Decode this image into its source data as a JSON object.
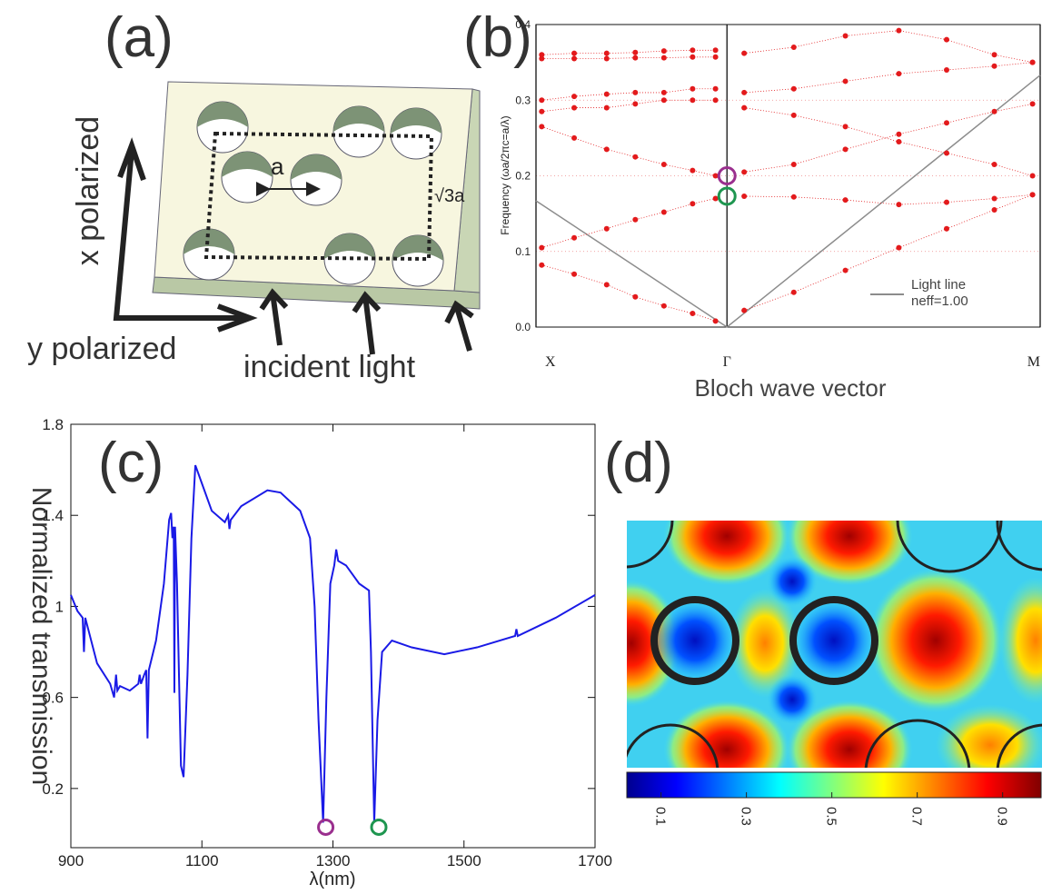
{
  "panel_a": {
    "label": "(a)",
    "x_label": "x polarized",
    "y_label": "y polarized",
    "incident": "incident light",
    "lattice": "a",
    "height": "√3a"
  },
  "chart_data": [
    {
      "type": "scatter",
      "panel_label": "(b)",
      "ylabel": "Frequency (ωa/2πc=a/λ)",
      "xlabel": "Bloch wave vector",
      "xlim": [
        0,
        2.64
      ],
      "xticks": [
        {
          "value": 0,
          "label": "X"
        },
        {
          "value": 1,
          "label": "Γ"
        },
        {
          "value": 2.64,
          "label": "M"
        }
      ],
      "ylim": [
        0,
        0.4
      ],
      "yticks": [
        {
          "value": 0,
          "label": "0.0"
        },
        {
          "value": 0.1,
          "label": "0.1"
        },
        {
          "value": 0.2,
          "label": "0.2"
        },
        {
          "value": 0.3,
          "label": "0.3"
        },
        {
          "value": 0.4,
          "label": "0.4"
        }
      ],
      "grid": true,
      "legend": "lower right",
      "series": [
        {
          "color": "#e31a1c",
          "x": [
            0.03,
            0.2,
            0.37,
            0.52,
            0.67,
            0.82,
            0.94
          ],
          "values": [
            0.082,
            0.07,
            0.056,
            0.04,
            0.028,
            0.018,
            0.008
          ]
        },
        {
          "color": "#e31a1c",
          "x": [
            0.03,
            0.2,
            0.37,
            0.52,
            0.67,
            0.82,
            0.94
          ],
          "values": [
            0.105,
            0.118,
            0.13,
            0.142,
            0.152,
            0.163,
            0.17
          ]
        },
        {
          "color": "#e31a1c",
          "x": [
            0.03,
            0.2,
            0.37,
            0.52,
            0.67,
            0.82,
            0.94
          ],
          "values": [
            0.265,
            0.25,
            0.235,
            0.225,
            0.215,
            0.207,
            0.2
          ]
        },
        {
          "color": "#e31a1c",
          "x": [
            0.03,
            0.2,
            0.37,
            0.52,
            0.67,
            0.82,
            0.94
          ],
          "values": [
            0.285,
            0.29,
            0.29,
            0.295,
            0.3,
            0.3,
            0.3
          ]
        },
        {
          "color": "#e31a1c",
          "x": [
            0.03,
            0.2,
            0.37,
            0.52,
            0.67,
            0.82,
            0.94
          ],
          "values": [
            0.3,
            0.305,
            0.308,
            0.31,
            0.31,
            0.315,
            0.315
          ]
        },
        {
          "color": "#e31a1c",
          "x": [
            0.03,
            0.2,
            0.37,
            0.52,
            0.67,
            0.82,
            0.94
          ],
          "values": [
            0.355,
            0.355,
            0.355,
            0.356,
            0.356,
            0.357,
            0.357
          ]
        },
        {
          "color": "#e31a1c",
          "x": [
            0.03,
            0.2,
            0.37,
            0.52,
            0.67,
            0.82,
            0.94
          ],
          "values": [
            0.36,
            0.362,
            0.362,
            0.363,
            0.365,
            0.366,
            0.366
          ]
        },
        {
          "color": "#e31a1c",
          "x": [
            1.09,
            1.35,
            1.62,
            1.9,
            2.15,
            2.4,
            2.6
          ],
          "values": [
            0.022,
            0.046,
            0.075,
            0.105,
            0.13,
            0.155,
            0.175
          ]
        },
        {
          "color": "#e31a1c",
          "x": [
            1.09,
            1.35,
            1.62,
            1.9,
            2.15,
            2.4,
            2.6
          ],
          "values": [
            0.173,
            0.172,
            0.168,
            0.162,
            0.165,
            0.17,
            0.175
          ]
        },
        {
          "color": "#e31a1c",
          "x": [
            1.09,
            1.35,
            1.62,
            1.9,
            2.15,
            2.4,
            2.6
          ],
          "values": [
            0.205,
            0.215,
            0.235,
            0.255,
            0.27,
            0.285,
            0.295
          ]
        },
        {
          "color": "#e31a1c",
          "x": [
            1.09,
            1.35,
            1.62,
            1.9,
            2.15,
            2.4,
            2.6
          ],
          "values": [
            0.29,
            0.28,
            0.265,
            0.245,
            0.23,
            0.215,
            0.2
          ]
        },
        {
          "color": "#e31a1c",
          "x": [
            1.09,
            1.35,
            1.62,
            1.9,
            2.15,
            2.4,
            2.6
          ],
          "values": [
            0.31,
            0.315,
            0.325,
            0.335,
            0.34,
            0.345,
            0.35
          ]
        },
        {
          "color": "#e31a1c",
          "x": [
            1.09,
            1.35,
            1.62,
            1.9,
            2.15,
            2.4,
            2.6
          ],
          "values": [
            0.362,
            0.37,
            0.385,
            0.392,
            0.38,
            0.36,
            0.35
          ]
        }
      ],
      "light_line": {
        "name": "Light line",
        "note": "neff=1.00",
        "color": "#8c8c8c",
        "x": [
          0,
          1,
          2.64
        ],
        "values": [
          0.167,
          0,
          0.333
        ]
      },
      "markers": [
        {
          "x": 1,
          "y": 0.2,
          "color": "#9a2f8e"
        },
        {
          "x": 1,
          "y": 0.173,
          "color": "#1e9650"
        }
      ]
    },
    {
      "type": "line",
      "panel_label": "(c)",
      "ylabel": "Normalized transmission",
      "xlabel": "λ(nm)",
      "xlim": [
        900,
        1700
      ],
      "xticks": [
        900,
        1100,
        1300,
        1500,
        1700
      ],
      "ylim": [
        -0.06,
        1.8
      ],
      "yticks": [
        0.2,
        0.6,
        1,
        1.4,
        1.8
      ],
      "color": "#1a1ae6",
      "x": [
        900,
        910,
        918,
        920,
        922,
        940,
        960,
        966,
        969,
        971,
        975,
        990,
        1003,
        1005,
        1007,
        1012,
        1015,
        1017,
        1019,
        1030,
        1042,
        1050,
        1053,
        1055,
        1057,
        1058,
        1059,
        1062,
        1068,
        1072,
        1078,
        1084,
        1090,
        1100,
        1115,
        1135,
        1140,
        1142,
        1144,
        1160,
        1200,
        1220,
        1250,
        1265,
        1272,
        1278,
        1285,
        1290,
        1296,
        1302,
        1305,
        1308,
        1320,
        1340,
        1355,
        1358,
        1363,
        1368,
        1375,
        1390,
        1420,
        1470,
        1520,
        1578,
        1580,
        1582,
        1640,
        1700
      ],
      "values": [
        1.05,
        0.98,
        0.95,
        0.8,
        0.95,
        0.75,
        0.66,
        0.6,
        0.7,
        0.63,
        0.65,
        0.63,
        0.66,
        0.7,
        0.66,
        0.7,
        0.72,
        0.42,
        0.72,
        0.85,
        1.1,
        1.38,
        1.41,
        1.3,
        1.35,
        0.62,
        1.35,
        1.1,
        0.3,
        0.25,
        0.7,
        1.3,
        1.62,
        1.54,
        1.42,
        1.37,
        1.4,
        1.34,
        1.38,
        1.44,
        1.51,
        1.5,
        1.42,
        1.3,
        1.0,
        0.5,
        0.05,
        0.6,
        1.1,
        1.18,
        1.25,
        1.2,
        1.18,
        1.1,
        1.07,
        0.8,
        0.05,
        0.5,
        0.8,
        0.85,
        0.82,
        0.79,
        0.82,
        0.87,
        0.9,
        0.87,
        0.95,
        1.05
      ],
      "markers": [
        {
          "x": 1289,
          "y": 0.03,
          "color": "#9a2f8e"
        },
        {
          "x": 1370,
          "y": 0.03,
          "color": "#1e9650"
        }
      ]
    },
    {
      "type": "heatmap",
      "panel_label": "(d)",
      "colorbar": {
        "lim": [
          0.02,
          0.99
        ],
        "ticks": [
          0.1,
          0.3,
          0.5,
          0.7,
          0.9
        ]
      }
    }
  ]
}
